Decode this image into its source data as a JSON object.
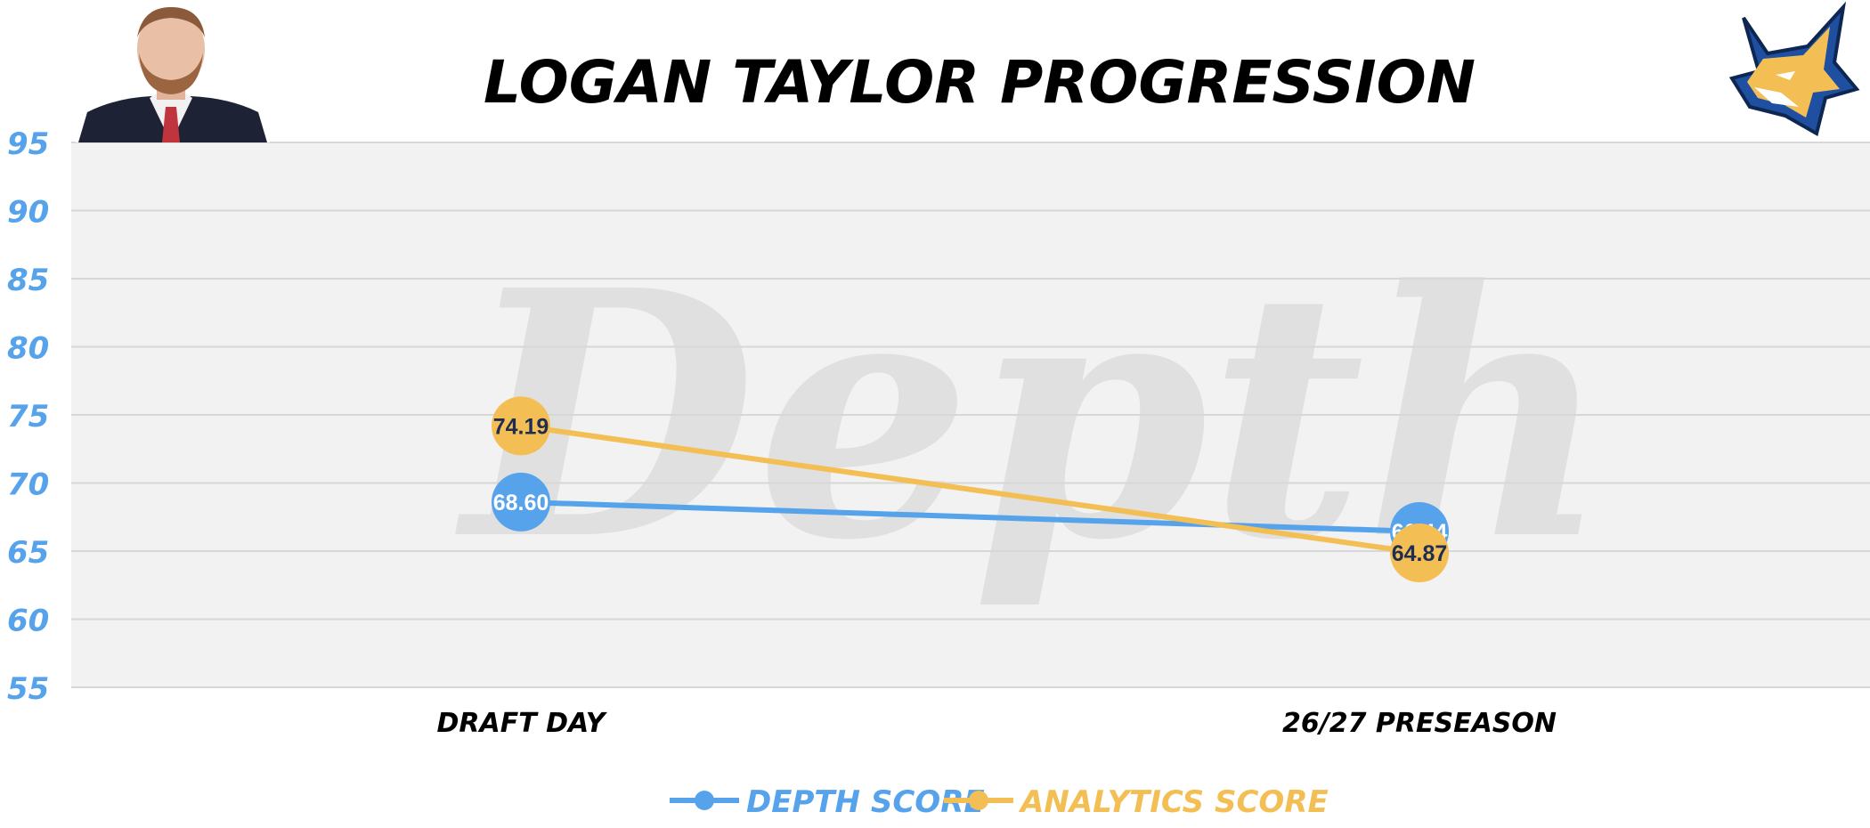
{
  "chart_data": {
    "type": "line",
    "title": "LOGAN TAYLOR PROGRESSION",
    "categories": [
      "DRAFT DAY",
      "26/27 PRESEASON"
    ],
    "series": [
      {
        "name": "DEPTH SCORE",
        "values": [
          68.6,
          66.44
        ],
        "labels": [
          "68.60",
          "66.44"
        ],
        "color": "#56a3ec",
        "label_color": "#ffffff"
      },
      {
        "name": "ANALYTICS SCORE",
        "values": [
          74.19,
          64.87
        ],
        "labels": [
          "74.19",
          "64.87"
        ],
        "color": "#f3bf55",
        "label_color": "#1f2d52"
      }
    ],
    "yticks": [
      "95",
      "90",
      "85",
      "80",
      "75",
      "70",
      "65",
      "60",
      "55"
    ],
    "ylim": [
      55,
      95
    ],
    "grid": true,
    "legend_position": "bottom-center",
    "watermark": "Depth",
    "colors": {
      "plot_background": "#f2f2f2",
      "gridline": "#d7d7d7",
      "axis_tick": "#56a3ec",
      "title": "#000000"
    }
  },
  "images": {
    "player_photo": "player-headshot",
    "team_logo": "wolf-logo-icon"
  }
}
